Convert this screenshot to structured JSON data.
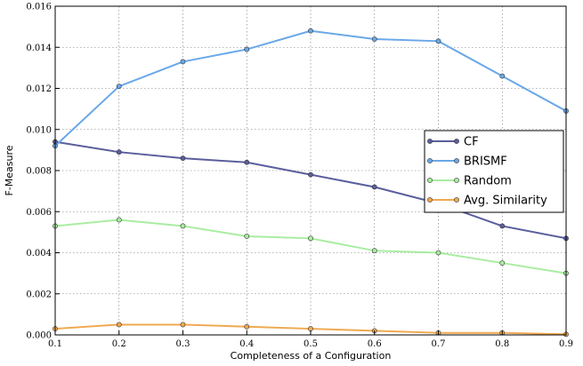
{
  "chart_data": {
    "type": "line",
    "title": "",
    "xlabel": "Completeness of a Configuration",
    "ylabel": "F-Measure",
    "xlim": [
      0.1,
      0.9
    ],
    "ylim": [
      0,
      0.016
    ],
    "xticks": [
      "0.1",
      "0.2",
      "0.3",
      "0.4",
      "0.5",
      "0.6",
      "0.7",
      "0.8",
      "0.9"
    ],
    "yticks": [
      "0.000",
      "0.002",
      "0.004",
      "0.006",
      "0.008",
      "0.010",
      "0.012",
      "0.014",
      "0.016"
    ],
    "grid": true,
    "legend_position": "right",
    "series": [
      {
        "name": "CF",
        "color": "#5b5e9c",
        "x": [
          0.1,
          0.2,
          0.3,
          0.4,
          0.5,
          0.6,
          0.7,
          0.8,
          0.9
        ],
        "y": [
          0.0094,
          0.0089,
          0.0086,
          0.0084,
          0.0078,
          0.0072,
          0.0064,
          0.0053,
          0.0047
        ]
      },
      {
        "name": "BRISMF",
        "color": "#6aa8e8",
        "x": [
          0.1,
          0.2,
          0.3,
          0.4,
          0.5,
          0.6,
          0.7,
          0.8,
          0.9
        ],
        "y": [
          0.0092,
          0.0121,
          0.0133,
          0.0139,
          0.0148,
          0.0144,
          0.0143,
          0.0126,
          0.0109
        ]
      },
      {
        "name": "Random",
        "color": "#a8eda0",
        "x": [
          0.1,
          0.2,
          0.3,
          0.4,
          0.5,
          0.6,
          0.7,
          0.8,
          0.9
        ],
        "y": [
          0.0053,
          0.0056,
          0.0053,
          0.0048,
          0.0047,
          0.0041,
          0.004,
          0.0035,
          0.003
        ]
      },
      {
        "name": "Avg. Similarity",
        "color": "#f0a850",
        "x": [
          0.1,
          0.2,
          0.3,
          0.4,
          0.5,
          0.6,
          0.7,
          0.8,
          0.9
        ],
        "y": [
          0.0003,
          0.0005,
          0.0005,
          0.0004,
          0.0003,
          0.0002,
          0.0001,
          0.0001,
          3e-05
        ]
      }
    ]
  }
}
